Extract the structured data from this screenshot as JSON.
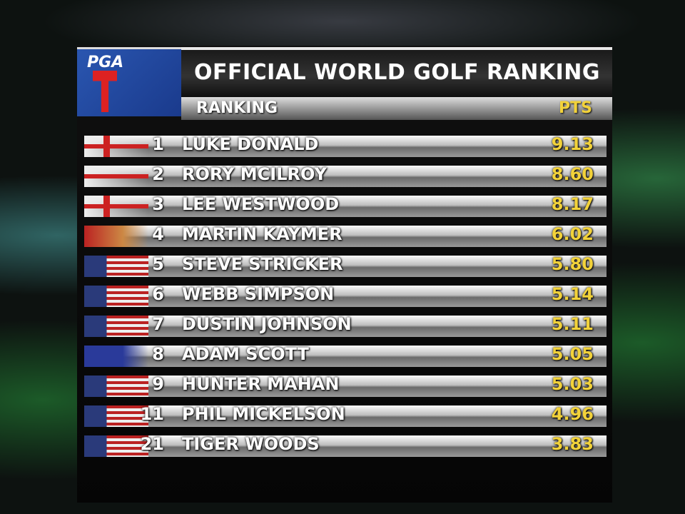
{
  "header": {
    "logo": "PGA",
    "title": "OFFICIAL WORLD GOLF RANKING"
  },
  "table": {
    "columns": [
      "RANKING",
      "PTS"
    ],
    "rows": [
      [
        "1",
        "LUKE DONALD",
        "9.13"
      ],
      [
        "2",
        "RORY MCILROY",
        "8.60"
      ],
      [
        "3",
        "LEE WESTWOOD",
        "8.17"
      ],
      [
        "4",
        "MARTIN KAYMER",
        "6.02"
      ],
      [
        "5",
        "STEVE STRICKER",
        "5.80"
      ],
      [
        "6",
        "WEBB SIMPSON",
        "5.14"
      ],
      [
        "7",
        "DUSTIN JOHNSON",
        "5.11"
      ],
      [
        "8",
        "ADAM SCOTT",
        "5.05"
      ],
      [
        "9",
        "HUNTER MAHAN",
        "5.03"
      ],
      [
        "11",
        "PHIL MICKELSON",
        "4.96"
      ],
      [
        "21",
        "TIGER WOODS",
        "3.83"
      ]
    ]
  }
}
